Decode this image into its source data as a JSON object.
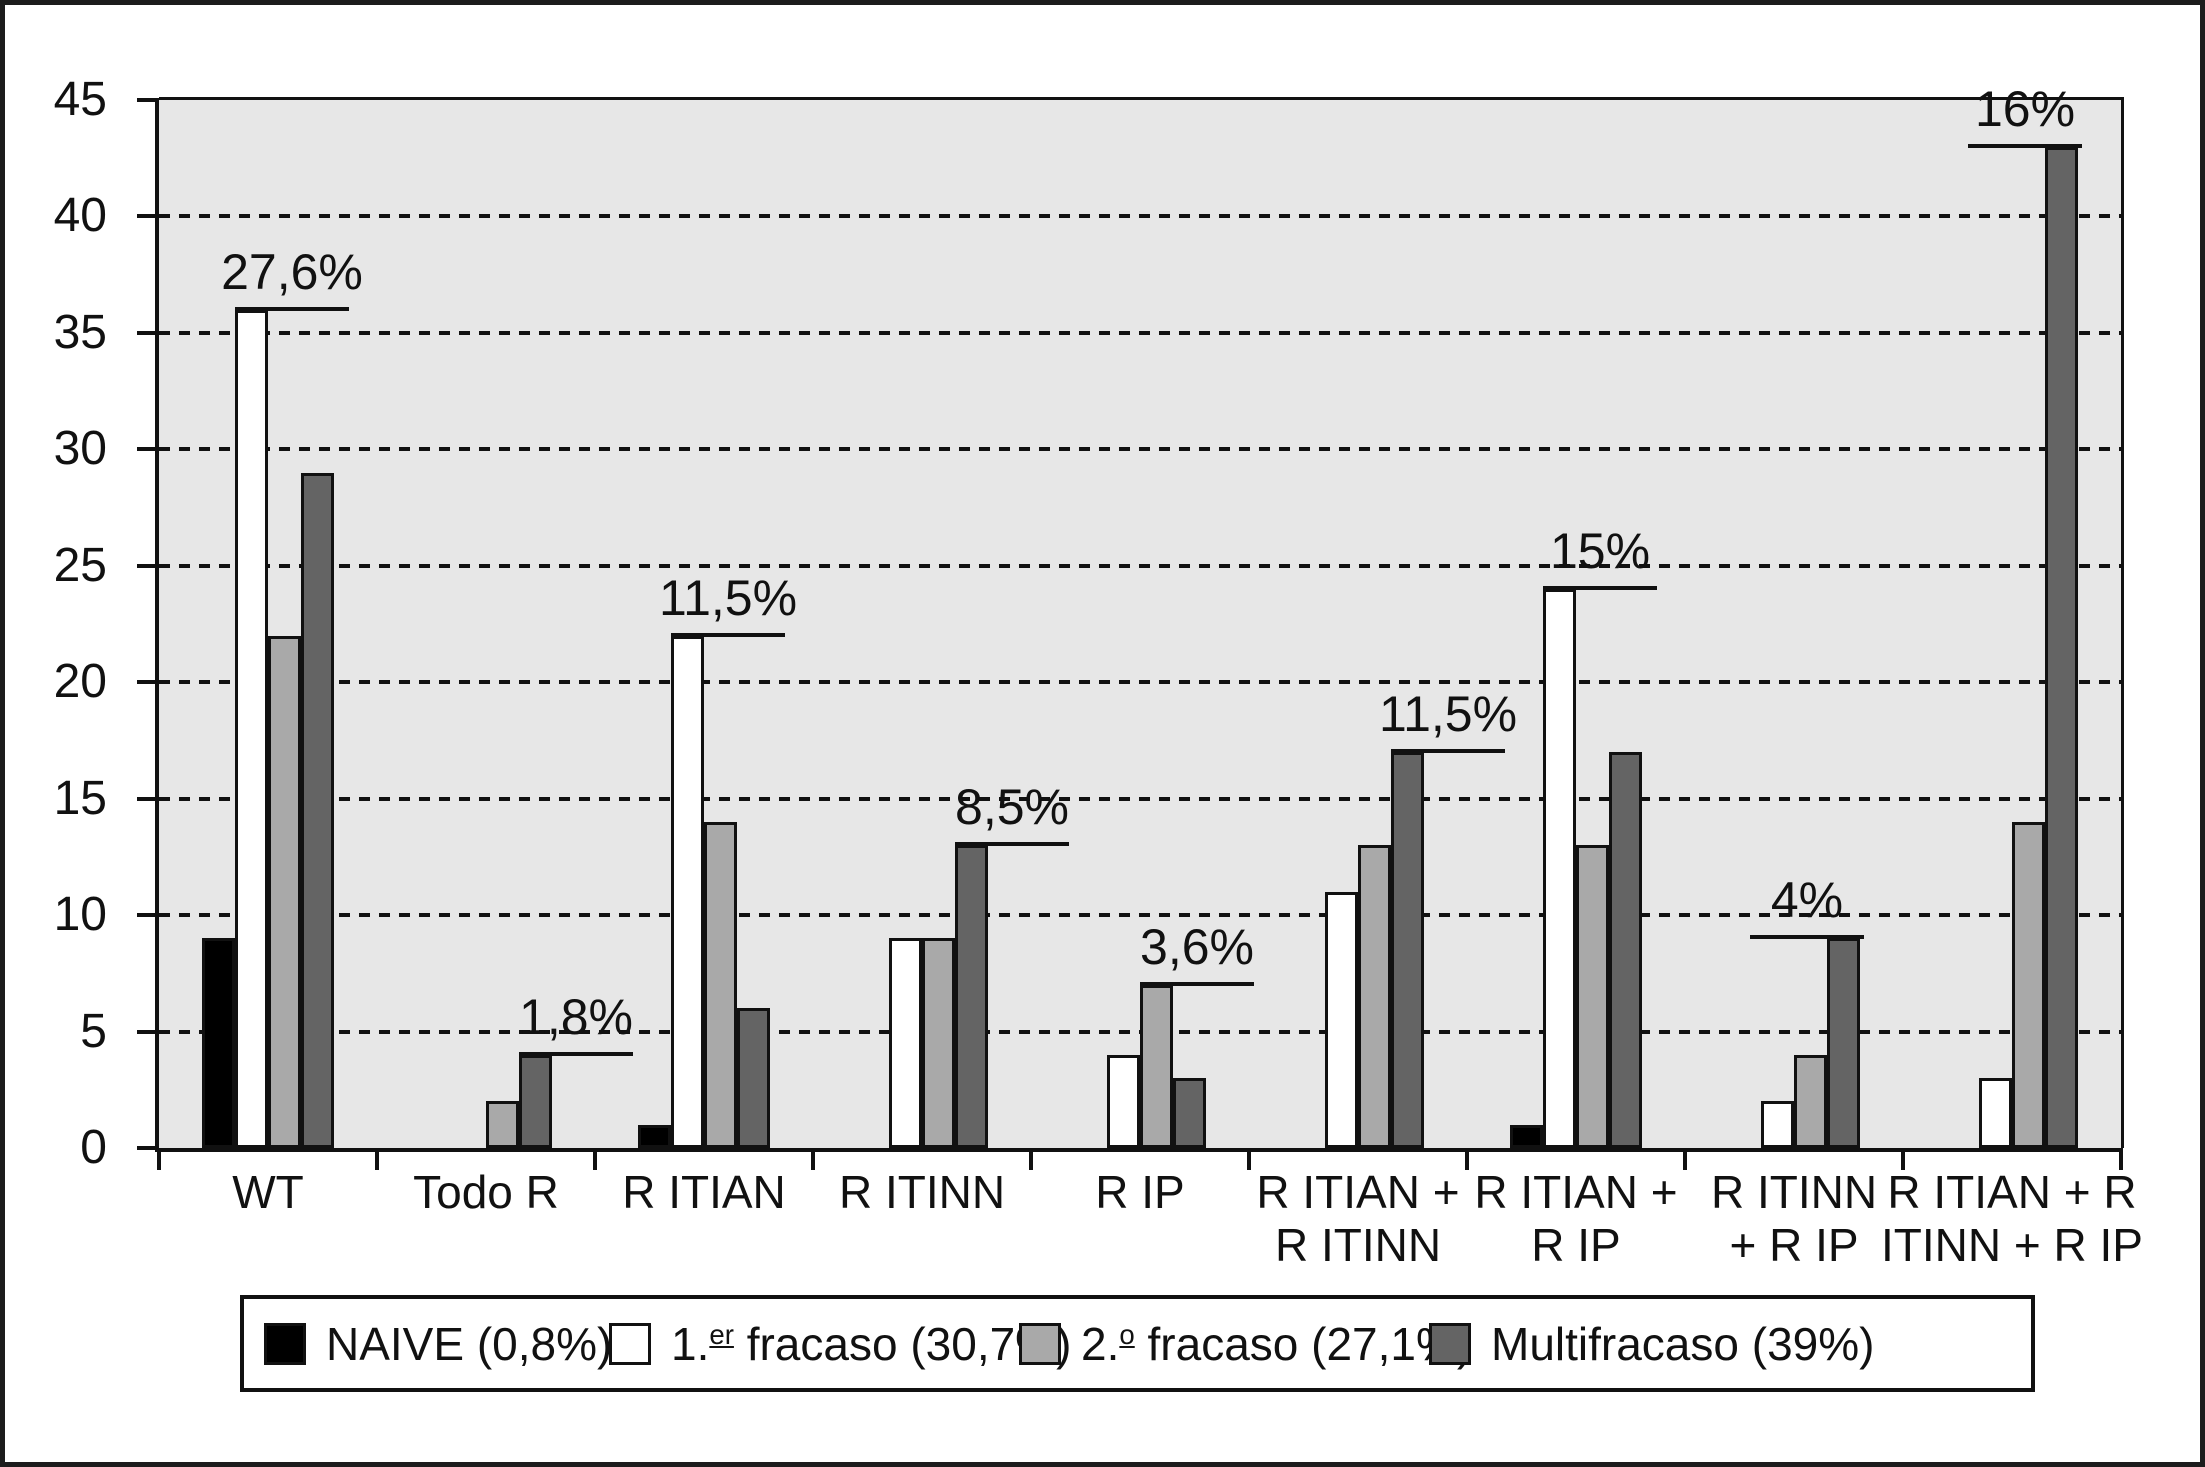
{
  "figure": {
    "background": "#ffffff",
    "border_color": "#1c1c1c"
  },
  "chart_data": {
    "type": "bar",
    "title": "",
    "xlabel": "",
    "ylabel": "",
    "plot_background": "#e7e7e7",
    "grid": "horizontal-dashed",
    "legend_position": "bottom",
    "ylim": [
      0,
      45
    ],
    "ytick_step": 5,
    "ytick_labels": [
      "0",
      "5",
      "10",
      "15",
      "20",
      "25",
      "30",
      "35",
      "40",
      "45"
    ],
    "categories": [
      [
        "WT"
      ],
      [
        "Todo R"
      ],
      [
        "R ITIAN"
      ],
      [
        "R ITINN"
      ],
      [
        "R IP"
      ],
      [
        "R ITIAN +",
        "R ITINN"
      ],
      [
        "R ITIAN +",
        "R IP"
      ],
      [
        "R ITINN",
        "+ R IP"
      ],
      [
        "R ITIAN + R",
        "ITINN + R IP"
      ]
    ],
    "series": [
      {
        "name": "NAIVE (0,8%)",
        "color": "#000000",
        "values": [
          9,
          0,
          1,
          0,
          0,
          0,
          1,
          0,
          0
        ]
      },
      {
        "name": "1.er fracaso (30,7%)",
        "color": "#ffffff",
        "values": [
          36,
          0,
          22,
          9,
          4,
          11,
          24,
          2,
          3
        ]
      },
      {
        "name": "2.o fracaso (27,1%)",
        "color": "#a9a9a9",
        "values": [
          22,
          2,
          14,
          9,
          7,
          13,
          13,
          4,
          14
        ]
      },
      {
        "name": "Multifracaso (39%)",
        "color": "#646464",
        "values": [
          29,
          4,
          6,
          13,
          3,
          17,
          17,
          9,
          43
        ]
      }
    ],
    "annotations": [
      {
        "group": 0,
        "series": 1,
        "text": "27,6%"
      },
      {
        "group": 1,
        "series": 3,
        "text": "1,8%"
      },
      {
        "group": 2,
        "series": 1,
        "text": "11,5%"
      },
      {
        "group": 3,
        "series": 3,
        "text": "8,5%"
      },
      {
        "group": 4,
        "series": 2,
        "text": "3,6%"
      },
      {
        "group": 5,
        "series": 3,
        "text": "11,5%"
      },
      {
        "group": 6,
        "series": 1,
        "text": "15%"
      },
      {
        "group": 7,
        "series": 3,
        "text": "4%"
      },
      {
        "group": 8,
        "series": 3,
        "text": "16%"
      }
    ]
  },
  "legend": {
    "items": [
      {
        "pre": "NAIVE (0,8%)",
        "sup": "",
        "post": ""
      },
      {
        "pre": "1.",
        "sup": "er",
        "post": " fracaso (30,7%)"
      },
      {
        "pre": "2.",
        "sup": "o",
        "post": " fracaso (27,1%)"
      },
      {
        "pre": "Multifracaso (39%)",
        "sup": "",
        "post": ""
      }
    ]
  }
}
